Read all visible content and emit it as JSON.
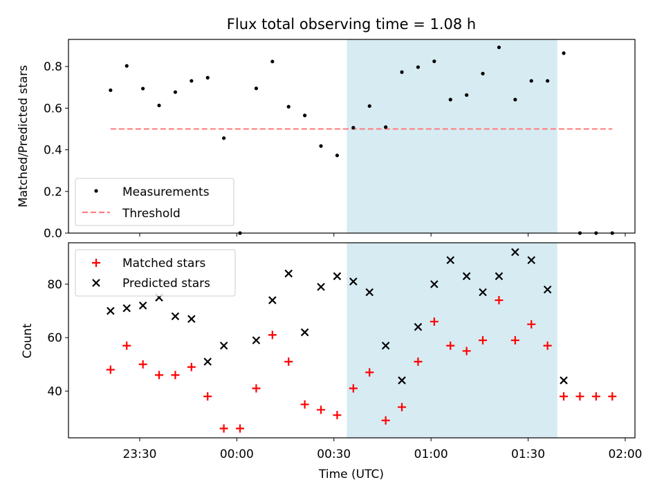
{
  "chart_data": [
    {
      "type": "scatter",
      "title": "Flux total observing time = 1.08 h",
      "ylabel": "Matched/Predicted stars",
      "xlabel": "",
      "xlim": [
        "23:08",
        "02:03"
      ],
      "ylim": [
        0,
        0.93
      ],
      "yticks": [
        0.0,
        0.2,
        0.4,
        0.6,
        0.8
      ],
      "ytick_labels": [
        "0.0",
        "0.2",
        "0.4",
        "0.6",
        "0.8"
      ],
      "grid": false,
      "legend_position": "lower-left",
      "shaded_span": {
        "x0": "00:34",
        "x1": "01:39",
        "color": "#add8e6"
      },
      "series": [
        {
          "name": "Measurements",
          "marker": "dot",
          "color": "#000000",
          "x": [
            "23:21",
            "23:26",
            "23:31",
            "23:36",
            "23:41",
            "23:46",
            "23:51",
            "23:56",
            "00:01",
            "00:06",
            "00:11",
            "00:16",
            "00:21",
            "00:26",
            "00:31",
            "00:36",
            "00:41",
            "00:46",
            "00:51",
            "00:56",
            "01:01",
            "01:06",
            "01:11",
            "01:16",
            "01:21",
            "01:26",
            "01:31",
            "01:36",
            "01:41",
            "01:46",
            "01:51",
            "01:56"
          ],
          "y": [
            0.686,
            0.803,
            0.694,
            0.613,
            0.677,
            0.731,
            0.746,
            0.456,
            0.0,
            0.695,
            0.824,
            0.607,
            0.565,
            0.418,
            0.373,
            0.506,
            0.61,
            0.509,
            0.773,
            0.797,
            0.825,
            0.641,
            0.663,
            0.766,
            0.892,
            0.641,
            0.731,
            0.731,
            0.864,
            0.0,
            0.0,
            0.0
          ]
        },
        {
          "name": "Threshold",
          "line_style": "dashed",
          "color": "#ff7f7f",
          "x": [
            "23:21",
            "01:56"
          ],
          "y": [
            0.5,
            0.5
          ]
        }
      ]
    },
    {
      "type": "scatter",
      "title": "",
      "xlabel": "Time (UTC)",
      "ylabel": "Count",
      "xlim": [
        "23:08",
        "02:03"
      ],
      "ylim": [
        22.5,
        95.5
      ],
      "xticks": [
        "23:30",
        "00:00",
        "00:30",
        "01:00",
        "01:30",
        "02:00"
      ],
      "yticks": [
        40,
        60,
        80
      ],
      "ytick_labels": [
        "40",
        "60",
        "80"
      ],
      "grid": false,
      "legend_position": "upper-left",
      "shaded_span": {
        "x0": "00:34",
        "x1": "01:39",
        "color": "#add8e6"
      },
      "series": [
        {
          "name": "Matched stars",
          "marker": "plus",
          "color": "#ff0000",
          "x": [
            "23:21",
            "23:26",
            "23:31",
            "23:36",
            "23:41",
            "23:46",
            "23:51",
            "23:56",
            "00:01",
            "00:06",
            "00:11",
            "00:16",
            "00:21",
            "00:26",
            "00:31",
            "00:36",
            "00:41",
            "00:46",
            "00:51",
            "00:56",
            "01:01",
            "01:06",
            "01:11",
            "01:16",
            "01:21",
            "01:26",
            "01:31",
            "01:36",
            "01:41",
            "01:46",
            "01:51",
            "01:56"
          ],
          "y": [
            48,
            57,
            50,
            46,
            46,
            49,
            38,
            26,
            26,
            41,
            61,
            51,
            35,
            33,
            31,
            41,
            47,
            29,
            34,
            51,
            66,
            57,
            55,
            59,
            74,
            59,
            65,
            57,
            38,
            38,
            38,
            38
          ]
        },
        {
          "name": "Predicted stars",
          "marker": "x",
          "color": "#000000",
          "x": [
            "23:21",
            "23:26",
            "23:31",
            "23:36",
            "23:41",
            "23:46",
            "23:51",
            "23:56",
            "00:06",
            "00:11",
            "00:16",
            "00:21",
            "00:26",
            "00:31",
            "00:36",
            "00:41",
            "00:46",
            "00:51",
            "00:56",
            "01:01",
            "01:06",
            "01:11",
            "01:16",
            "01:21",
            "01:26",
            "01:31",
            "01:36",
            "01:41"
          ],
          "y": [
            70,
            71,
            72,
            75,
            68,
            67,
            51,
            57,
            59,
            74,
            84,
            62,
            79,
            83,
            81,
            77,
            57,
            44,
            64,
            80,
            89,
            83,
            77,
            83,
            92,
            89,
            78,
            44
          ]
        }
      ]
    }
  ]
}
